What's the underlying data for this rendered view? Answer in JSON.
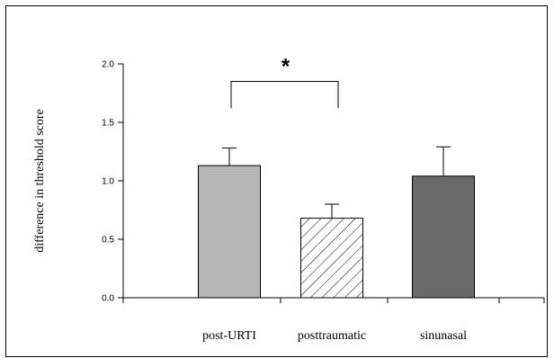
{
  "chart_data": {
    "type": "bar",
    "title": "",
    "xlabel": "",
    "ylabel": "difference in threshold score",
    "ylim": [
      0,
      2
    ],
    "yticks": [
      "0.0",
      "0.5",
      "1.0",
      "1.5",
      "2.0"
    ],
    "categories": [
      "post-URTI",
      "posttraumatic",
      "sinunasal"
    ],
    "values": [
      1.13,
      0.68,
      1.04
    ],
    "errors": [
      0.15,
      0.12,
      0.25
    ],
    "bar_colors": [
      "#b5b5b5",
      "#ffffff",
      "#6a6a6a"
    ],
    "bar_patterns": [
      "solid",
      "hatched",
      "solid"
    ],
    "significance": {
      "between": [
        "post-URTI",
        "posttraumatic"
      ],
      "label": "*"
    },
    "grid": false,
    "legend": "none"
  }
}
